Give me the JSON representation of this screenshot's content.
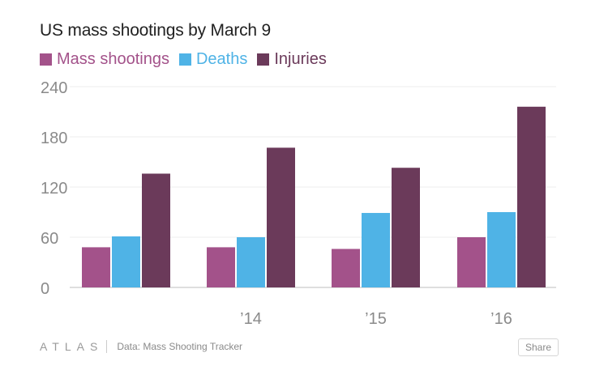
{
  "title": "US mass shootings by March 9",
  "footer": {
    "brand": "ATLAS",
    "source": "Data: Mass Shooting Tracker",
    "share_label": "Share"
  },
  "colors": {
    "Mass shootings": "#a3528a",
    "Deaths": "#4fb3e6",
    "Injuries": "#6b3a5a"
  },
  "chart_data": {
    "type": "bar",
    "title": "US mass shootings by March 9",
    "categories": [
      "",
      "'14",
      "'15",
      "'16"
    ],
    "series": [
      {
        "name": "Mass shootings",
        "values": [
          48,
          48,
          46,
          60
        ]
      },
      {
        "name": "Deaths",
        "values": [
          61,
          60,
          89,
          90
        ]
      },
      {
        "name": "Injuries",
        "values": [
          136,
          167,
          143,
          216
        ]
      }
    ],
    "ylim": [
      0,
      240
    ],
    "yticks": [
      0,
      60,
      120,
      180,
      240
    ],
    "xlabel": "",
    "ylabel": "",
    "grid": true,
    "legend": "top-left"
  }
}
